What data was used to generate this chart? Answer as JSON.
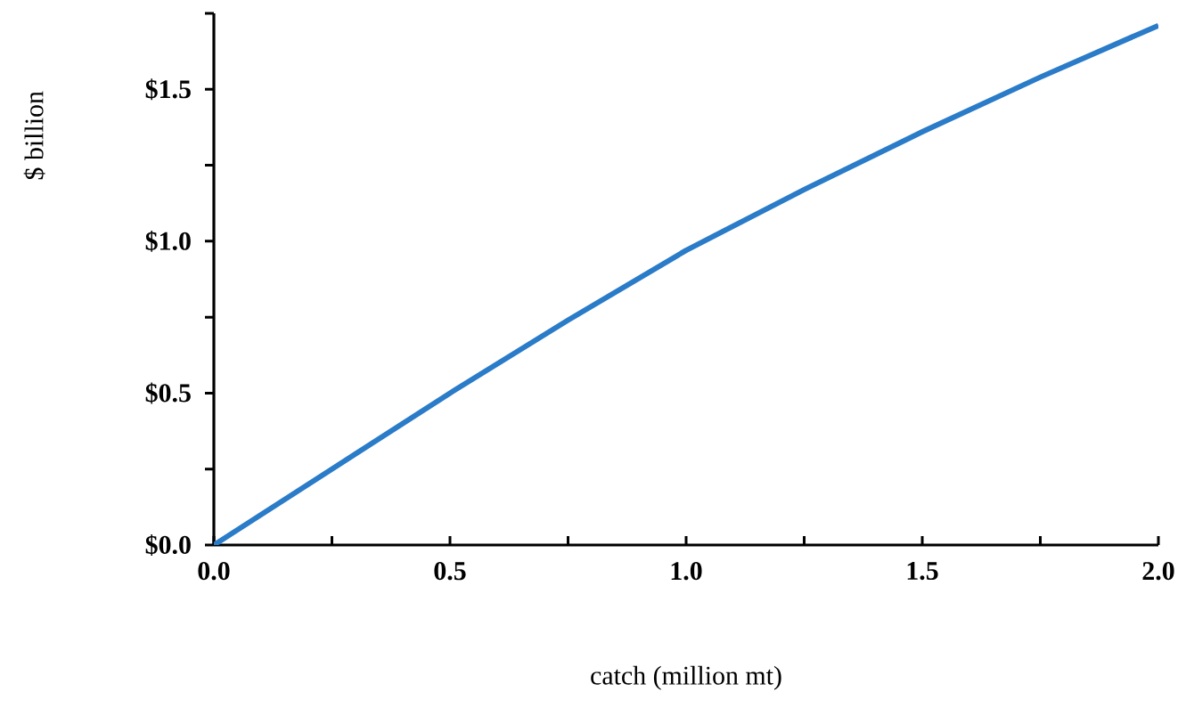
{
  "chart_data": {
    "type": "line",
    "xlabel": "catch (million mt)",
    "ylabel": "$ billion",
    "x": [
      0,
      0.25,
      0.5,
      0.75,
      1.0,
      1.25,
      1.5,
      1.75,
      2.0
    ],
    "values": [
      0,
      0.25,
      0.5,
      0.74,
      0.97,
      1.17,
      1.36,
      1.54,
      1.71
    ],
    "color": "#2a7bc8",
    "marker": "none",
    "xlim": [
      0,
      2.0
    ],
    "ylim": [
      0,
      1.75
    ],
    "xticks": [
      {
        "value": 0,
        "label": "0.0"
      },
      {
        "value": 0.25,
        "label": null
      },
      {
        "value": 0.5,
        "label": "0.5"
      },
      {
        "value": 0.75,
        "label": null
      },
      {
        "value": 1.0,
        "label": "1.0"
      },
      {
        "value": 1.25,
        "label": null
      },
      {
        "value": 1.5,
        "label": "1.5"
      },
      {
        "value": 1.75,
        "label": null
      },
      {
        "value": 2.0,
        "label": "2.0"
      }
    ],
    "yticks": [
      {
        "value": 0,
        "label": "$0.0"
      },
      {
        "value": 0.25,
        "label": null
      },
      {
        "value": 0.5,
        "label": "$0.5"
      },
      {
        "value": 0.75,
        "label": null
      },
      {
        "value": 1.0,
        "label": "$1.0"
      },
      {
        "value": 1.25,
        "label": null
      },
      {
        "value": 1.5,
        "label": "$1.5"
      },
      {
        "value": 1.75,
        "label": null
      }
    ]
  }
}
